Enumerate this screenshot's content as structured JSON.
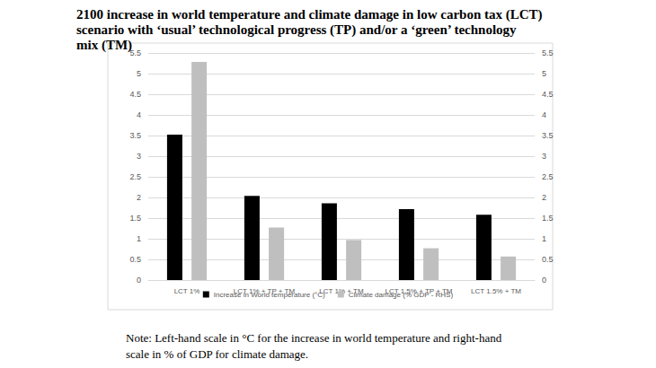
{
  "chart_data": {
    "type": "bar",
    "title": "2100 increase in world temperature and climate damage in low carbon tax (LCT) scenario with ‘usual’ technological progress (TP) and/or a ‘green’ technology mix (TM)",
    "note": "Note: Left-hand scale in °C for the increase in world temperature and right-hand scale in % of GDP for climate damage.",
    "categories": [
      "LCT 1%",
      "LCT 1% + TP + TM",
      "LCT 1% + TM",
      "LCT 1.5% + TP + TM",
      "LCT 1.5% + TM"
    ],
    "series": [
      {
        "name": "Increase in World temperature (°C)",
        "color": "#000000",
        "values": [
          3.52,
          2.04,
          1.86,
          1.72,
          1.58
        ]
      },
      {
        "name": "Climate damage (% GDP - RHS)",
        "color": "#bfbfbf",
        "axis": "y2",
        "values": [
          5.28,
          1.27,
          0.97,
          0.77,
          0.57
        ]
      }
    ],
    "ylim": [
      0,
      5.5
    ],
    "yticks": [
      0,
      0.5,
      1,
      1.5,
      2,
      2.5,
      3,
      3.5,
      4,
      4.5,
      5,
      5.5
    ],
    "y2lim": [
      0,
      5.5
    ],
    "y2ticks": [
      0,
      0.5,
      1,
      1.5,
      2,
      2.5,
      3,
      3.5,
      4,
      4.5,
      5,
      5.5
    ],
    "grid": true,
    "legend": "bottom"
  }
}
